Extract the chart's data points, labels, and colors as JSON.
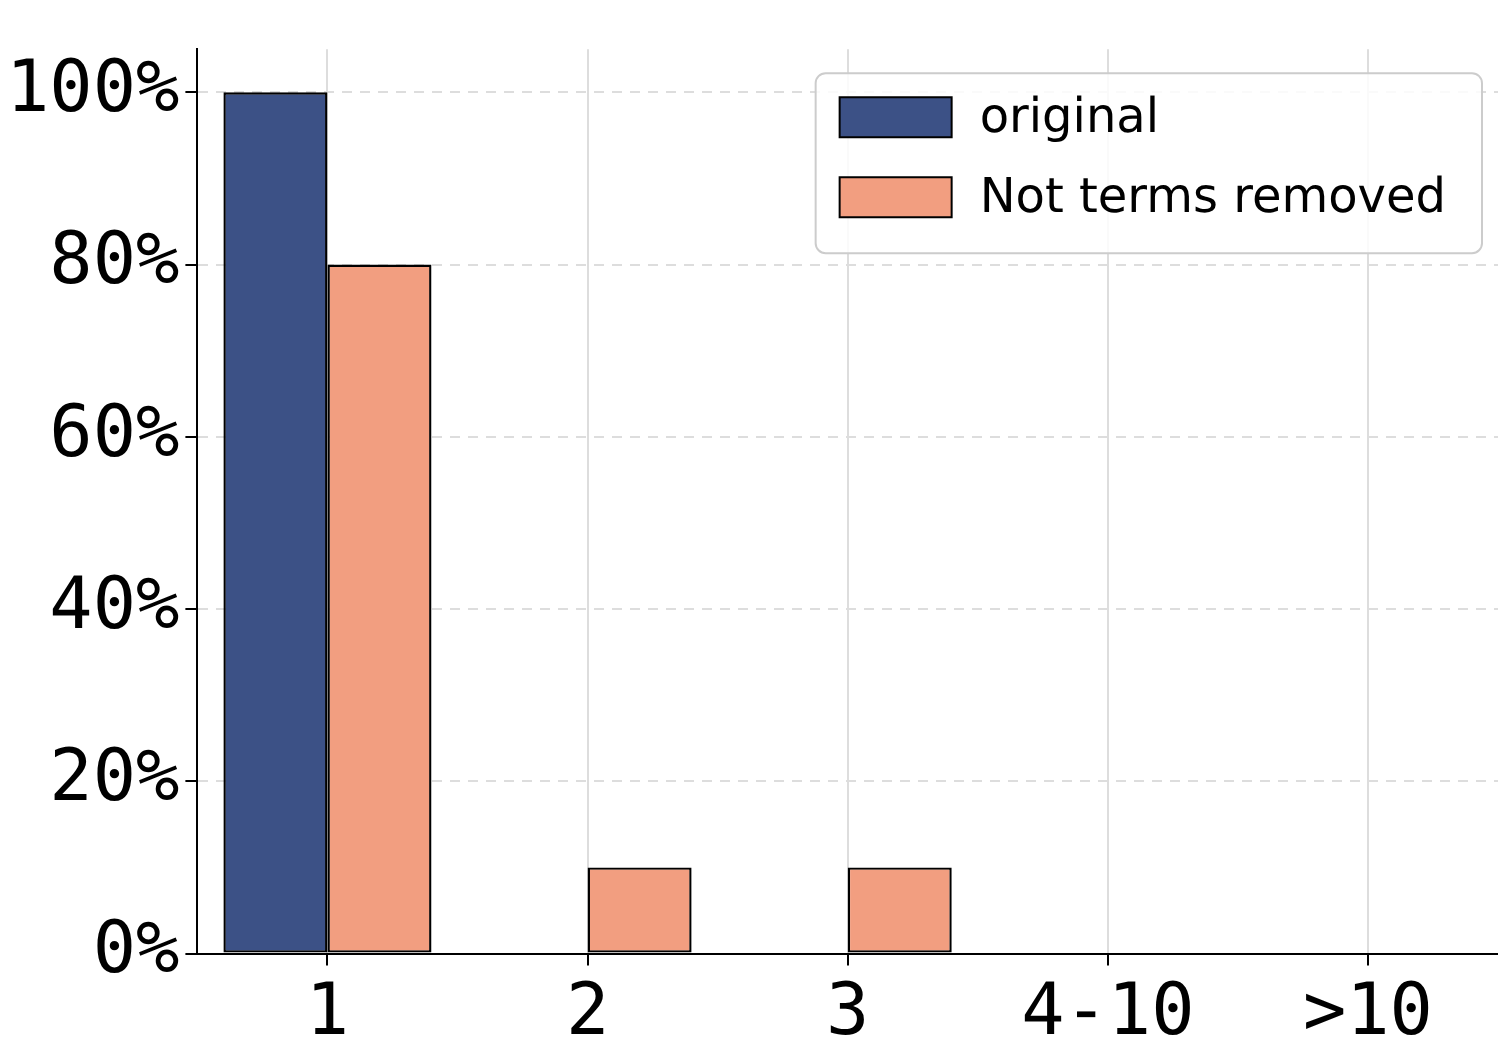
{
  "chart_data": {
    "type": "bar",
    "categories": [
      "1",
      "2",
      "3",
      "4-10",
      ">10"
    ],
    "series": [
      {
        "name": "original",
        "color": "#3c5186",
        "values": [
          100,
          0,
          0,
          0,
          0
        ]
      },
      {
        "name": "Not terms removed",
        "color": "#f29e80",
        "values": [
          80,
          10,
          10,
          0,
          0
        ]
      }
    ],
    "ylim": [
      0,
      105
    ],
    "yticks": [
      {
        "value": 0,
        "label": "0%"
      },
      {
        "value": 20,
        "label": "20%"
      },
      {
        "value": 40,
        "label": "40%"
      },
      {
        "value": 60,
        "label": "60%"
      },
      {
        "value": 80,
        "label": "80%"
      },
      {
        "value": 100,
        "label": "100%"
      }
    ],
    "grid": true,
    "legend": "top right"
  }
}
